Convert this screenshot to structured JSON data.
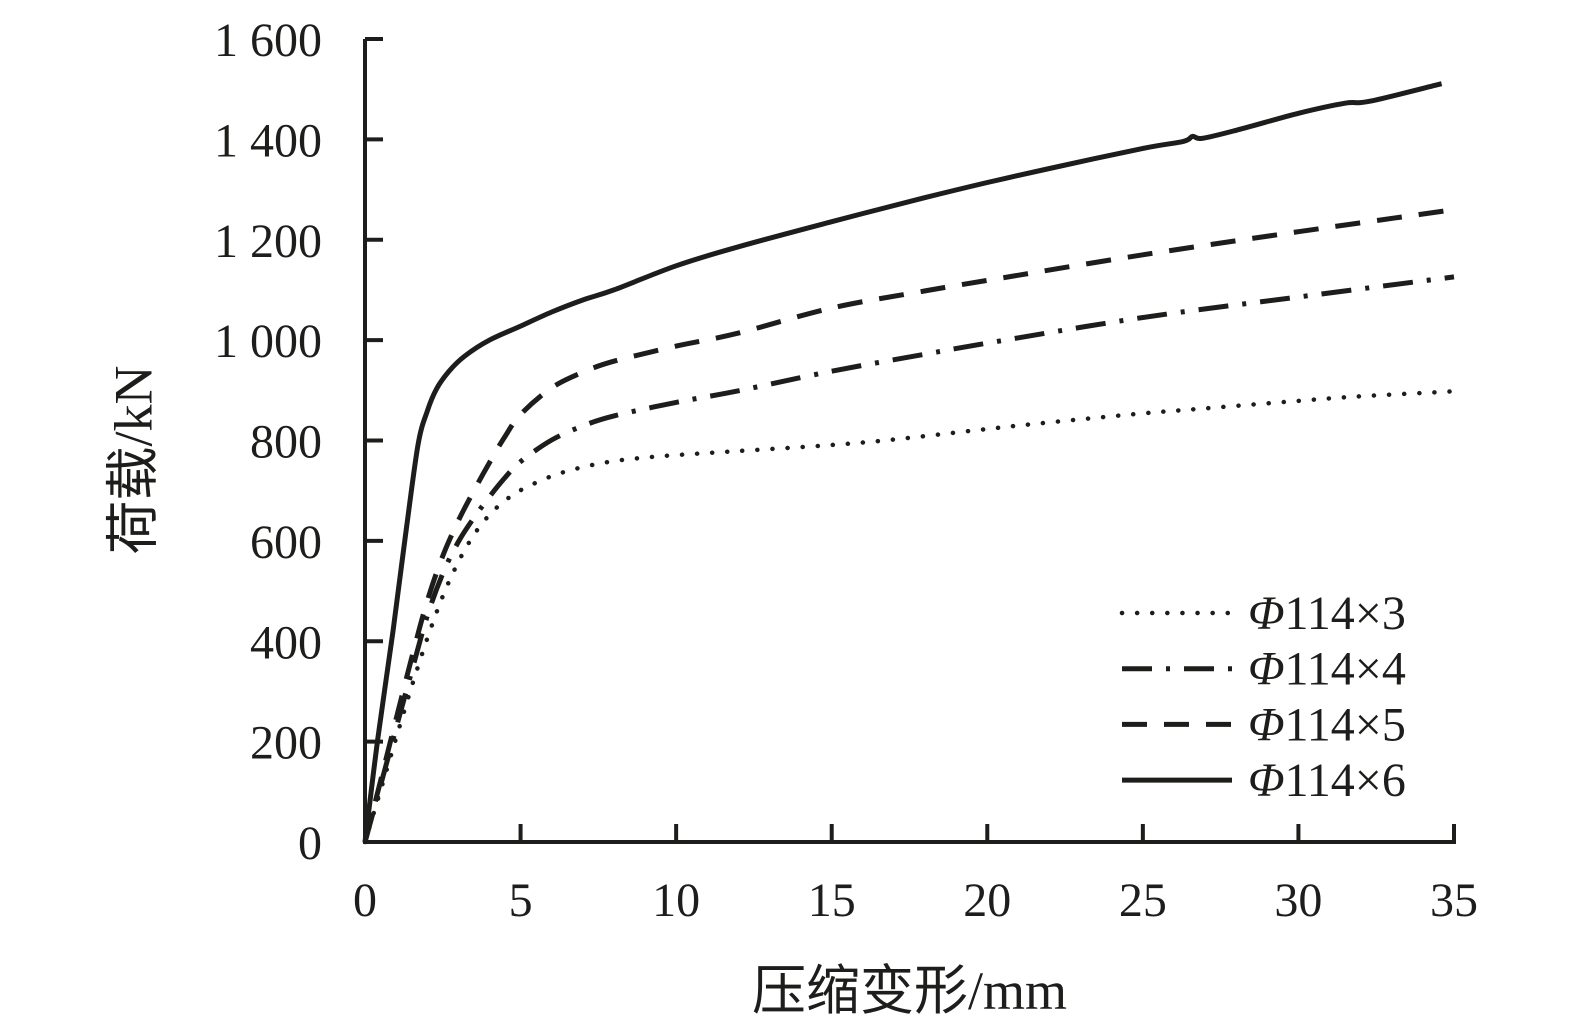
{
  "figure": {
    "background": "#ffffff",
    "ink_color": "#1d1d1b"
  },
  "chart_data": {
    "type": "line",
    "title": "",
    "xlabel": "压缩变形/mm",
    "ylabel": "荷载/kN",
    "xlim": [
      0,
      35
    ],
    "ylim": [
      0,
      1600
    ],
    "grid": false,
    "x_ticks": [
      0,
      5,
      10,
      15,
      20,
      25,
      30,
      35
    ],
    "x_tick_labels": [
      "0",
      "5",
      "10",
      "15",
      "20",
      "25",
      "30",
      "35"
    ],
    "y_ticks": [
      0,
      200,
      400,
      600,
      800,
      1000,
      1200,
      1400,
      1600
    ],
    "y_tick_labels": [
      "0",
      "200",
      "400",
      "600",
      "800",
      "1 000",
      "1 200",
      "1 400",
      "1 600"
    ],
    "legend_position": "inside lower right",
    "series": [
      {
        "label": "Φ114×3",
        "line_style": "dotted",
        "points": [
          [
            0,
            0
          ],
          [
            0.5,
            103
          ],
          [
            1,
            207
          ],
          [
            1.5,
            310
          ],
          [
            2,
            405
          ],
          [
            2.5,
            490
          ],
          [
            3,
            558
          ],
          [
            3.5,
            612
          ],
          [
            4,
            652
          ],
          [
            4.5,
            680
          ],
          [
            5,
            701
          ],
          [
            6,
            729
          ],
          [
            7,
            747
          ],
          [
            8,
            759
          ],
          [
            9,
            766
          ],
          [
            10,
            771
          ],
          [
            12,
            779
          ],
          [
            15,
            791
          ],
          [
            17,
            802
          ],
          [
            20,
            823
          ],
          [
            22,
            836
          ],
          [
            25,
            854
          ],
          [
            27,
            864
          ],
          [
            30,
            879
          ],
          [
            32,
            888
          ],
          [
            35,
            898
          ]
        ]
      },
      {
        "label": "Φ114×4",
        "line_style": "dashdot",
        "points": [
          [
            0,
            0
          ],
          [
            0.5,
            113
          ],
          [
            1,
            227
          ],
          [
            1.5,
            340
          ],
          [
            2,
            450
          ],
          [
            2.5,
            535
          ],
          [
            3,
            598
          ],
          [
            3.5,
            646
          ],
          [
            4,
            688
          ],
          [
            4.5,
            726
          ],
          [
            5,
            758
          ],
          [
            6,
            801
          ],
          [
            7,
            829
          ],
          [
            8,
            849
          ],
          [
            10,
            876
          ],
          [
            12,
            899
          ],
          [
            15,
            938
          ],
          [
            18,
            972
          ],
          [
            20,
            994
          ],
          [
            25,
            1045
          ],
          [
            30,
            1086
          ],
          [
            35,
            1126
          ]
        ]
      },
      {
        "label": "Φ114×5",
        "line_style": "dashed",
        "points": [
          [
            0,
            0
          ],
          [
            0.5,
            122
          ],
          [
            1,
            245
          ],
          [
            1.5,
            367
          ],
          [
            2,
            480
          ],
          [
            2.5,
            570
          ],
          [
            3,
            640
          ],
          [
            3.5,
            700
          ],
          [
            4,
            756
          ],
          [
            4.5,
            808
          ],
          [
            5,
            852
          ],
          [
            6,
            905
          ],
          [
            7,
            936
          ],
          [
            8,
            958
          ],
          [
            10,
            988
          ],
          [
            12,
            1014
          ],
          [
            15,
            1064
          ],
          [
            18,
            1098
          ],
          [
            20,
            1119
          ],
          [
            25,
            1170
          ],
          [
            30,
            1216
          ],
          [
            35,
            1260
          ]
        ]
      },
      {
        "label": "Φ114×6",
        "line_style": "solid",
        "points": [
          [
            0,
            0
          ],
          [
            0.4,
            200
          ],
          [
            0.9,
            420
          ],
          [
            1.3,
            610
          ],
          [
            1.7,
            790
          ],
          [
            2,
            858
          ],
          [
            2.3,
            903
          ],
          [
            2.7,
            938
          ],
          [
            3.2,
            968
          ],
          [
            4,
            1000
          ],
          [
            5,
            1028
          ],
          [
            6,
            1056
          ],
          [
            7,
            1080
          ],
          [
            8,
            1100
          ],
          [
            10,
            1148
          ],
          [
            12,
            1186
          ],
          [
            15,
            1236
          ],
          [
            18,
            1284
          ],
          [
            20,
            1314
          ],
          [
            22,
            1342
          ],
          [
            25,
            1382
          ],
          [
            26.3,
            1396
          ],
          [
            26.6,
            1406
          ],
          [
            26.9,
            1402
          ],
          [
            28,
            1418
          ],
          [
            30,
            1452
          ],
          [
            31.5,
            1472
          ],
          [
            32.3,
            1476
          ],
          [
            34.6,
            1511
          ]
        ]
      }
    ]
  }
}
